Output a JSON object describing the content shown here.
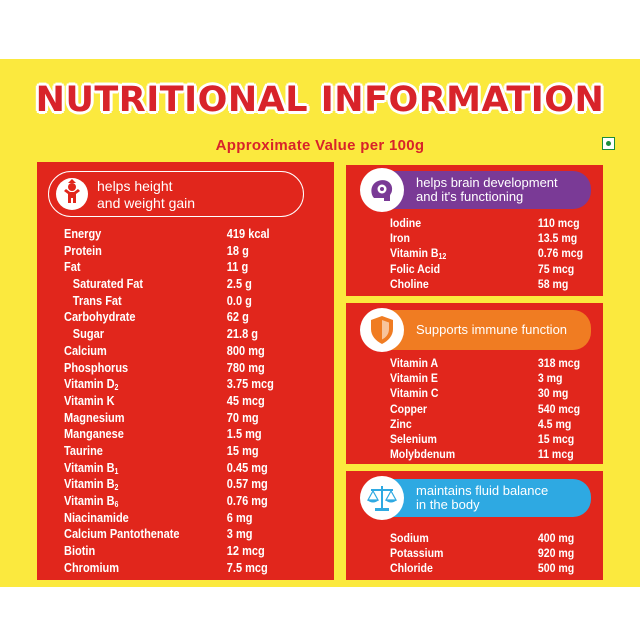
{
  "title": "NUTRITIONAL INFORMATION",
  "subtitle": "Approximate Value per 100g",
  "colors": {
    "background": "#fbe93e",
    "panel": "#e1261c",
    "brain": "#7a3a96",
    "immune": "#f07c22",
    "fluid": "#2ea9e2",
    "veg": "#1c8c3a"
  },
  "left_panel": {
    "header_line1": "helps height",
    "header_line2": "and weight gain",
    "icon": "growing-child-icon",
    "rows": [
      {
        "name": "Energy",
        "value": "419 kcal"
      },
      {
        "name": "Protein",
        "value": "18 g"
      },
      {
        "name": "Fat",
        "value": "11 g"
      },
      {
        "name": "Saturated Fat",
        "value": "2.5 g",
        "indent": true
      },
      {
        "name": "Trans Fat",
        "value": "0.0 g",
        "indent": true
      },
      {
        "name": "Carbohydrate",
        "value": "62 g"
      },
      {
        "name": "Sugar",
        "value": "21.8 g",
        "indent": true
      },
      {
        "name": "Calcium",
        "value": "800 mg"
      },
      {
        "name": "Phosphorus",
        "value": "780 mg"
      },
      {
        "name": "Vitamin D",
        "sub": "2",
        "value": "3.75 mcg"
      },
      {
        "name": "Vitamin K",
        "value": "45 mcg"
      },
      {
        "name": "Magnesium",
        "value": "70 mg"
      },
      {
        "name": "Manganese",
        "value": "1.5 mg"
      },
      {
        "name": "Taurine",
        "value": "15 mg"
      },
      {
        "name": "Vitamin B",
        "sub": "1",
        "value": "0.45 mg"
      },
      {
        "name": "Vitamin B",
        "sub": "2",
        "value": "0.57 mg"
      },
      {
        "name": "Vitamin B",
        "sub": "6",
        "value": "0.76 mg"
      },
      {
        "name": "Niacinamide",
        "value": "6 mg"
      },
      {
        "name": "Calcium Pantothenate",
        "value": "3 mg"
      },
      {
        "name": "Biotin",
        "value": "12 mcg"
      },
      {
        "name": "Chromium",
        "value": "7.5 mcg"
      }
    ]
  },
  "brain_panel": {
    "header_line1": "helps brain development",
    "header_line2": "and it's functioning",
    "icon": "brain-gear-icon",
    "rows": [
      {
        "name": "Iodine",
        "value": "110 mcg"
      },
      {
        "name": "Iron",
        "value": "13.5 mg"
      },
      {
        "name": "Vitamin B",
        "sub": "12",
        "value": "0.76 mcg"
      },
      {
        "name": "Folic Acid",
        "value": "75 mcg"
      },
      {
        "name": "Choline",
        "value": "58 mg"
      }
    ]
  },
  "immune_panel": {
    "header_line1": "Supports immune function",
    "icon": "shield-icon",
    "rows": [
      {
        "name": "Vitamin A",
        "value": "318 mcg"
      },
      {
        "name": "Vitamin E",
        "value": "3 mg"
      },
      {
        "name": "Vitamin C",
        "value": "30 mg"
      },
      {
        "name": "Copper",
        "value": "540 mcg"
      },
      {
        "name": "Zinc",
        "value": "4.5 mg"
      },
      {
        "name": "Selenium",
        "value": "15 mcg"
      },
      {
        "name": "Molybdenum",
        "value": "11 mcg"
      }
    ]
  },
  "fluid_panel": {
    "header_line1": "maintains fluid balance",
    "header_line2": "in the body",
    "icon": "balance-scale-icon",
    "rows": [
      {
        "name": "Sodium",
        "value": "400 mg"
      },
      {
        "name": "Potassium",
        "value": "920 mg"
      },
      {
        "name": "Chloride",
        "value": "500 mg"
      }
    ]
  }
}
